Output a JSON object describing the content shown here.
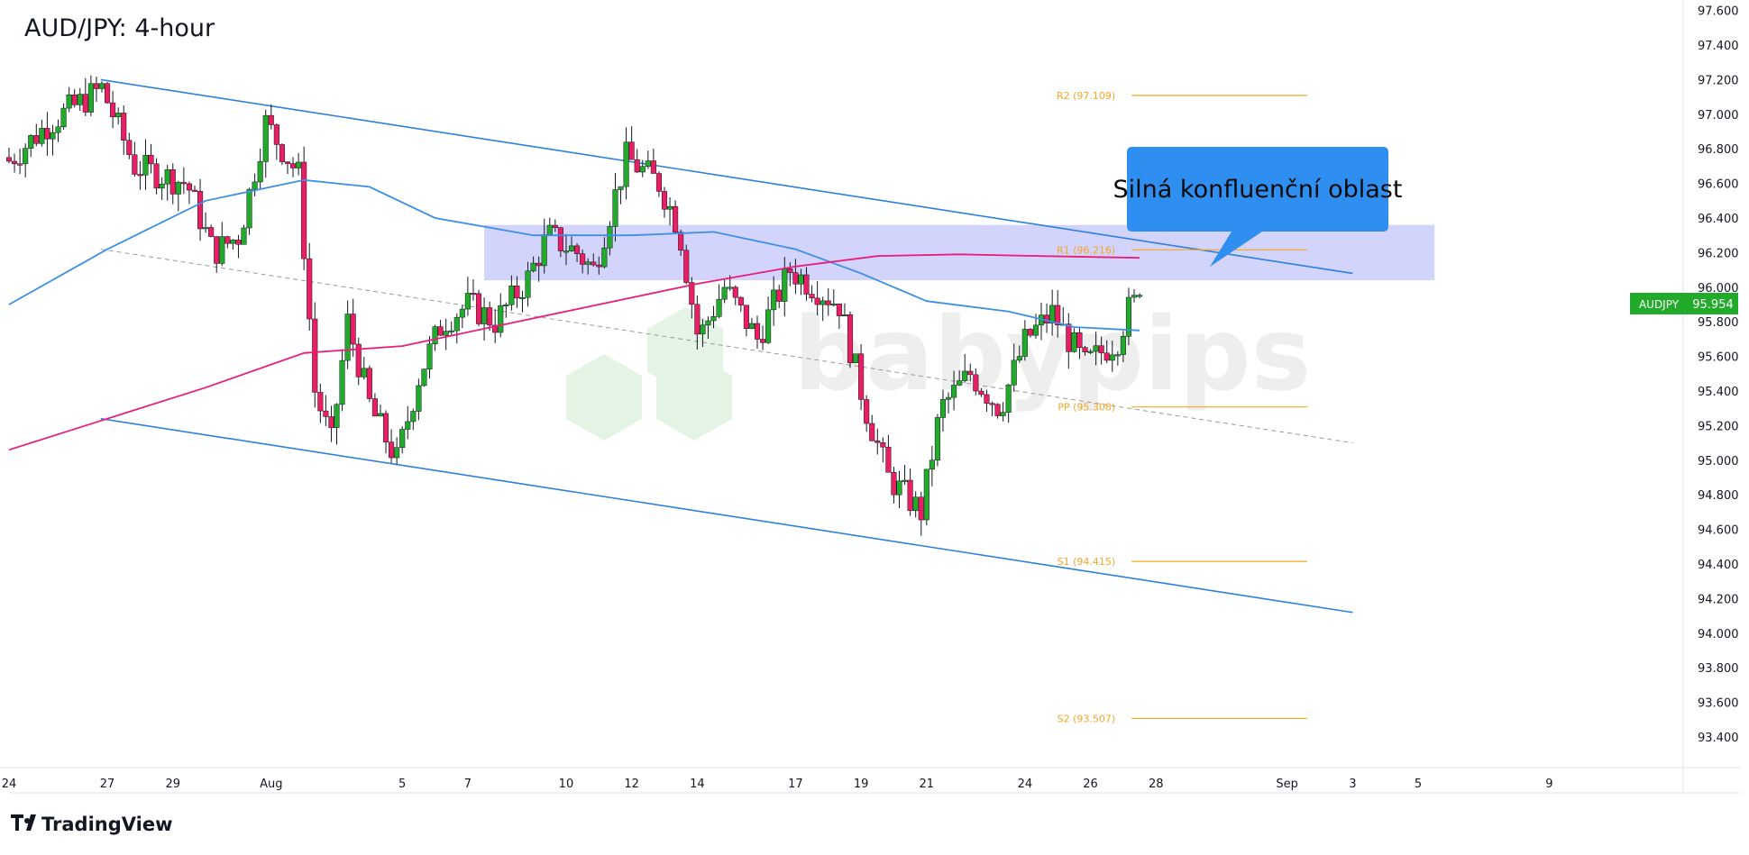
{
  "header": {
    "title": "AUD/JPY: 4-hour"
  },
  "footer": {
    "brand": "TradingView"
  },
  "watermark": {
    "text": "babypips"
  },
  "colors": {
    "bull": "#22ab2a",
    "bear": "#e91e63",
    "channel": "#2d7fe0",
    "sma100": "#3d8fe6",
    "sma200": "#e91e7a",
    "pivot": "#f5a623",
    "zone": "#c3c6fb",
    "callout": "#2e8ff0",
    "price_tag": "#22ab2a"
  },
  "annotation": {
    "text": "Silná konfluenční oblast"
  },
  "price_tag": {
    "symbol": "AUDJPY",
    "value": "95.954"
  },
  "chart_data": {
    "type": "candlestick",
    "title": "AUD/JPY: 4-hour",
    "ylim": [
      93.3,
      97.7
    ],
    "y_ticks": [
      "97.600",
      "97.400",
      "97.200",
      "97.000",
      "96.800",
      "96.600",
      "96.400",
      "96.200",
      "96.000",
      "95.800",
      "95.600",
      "95.400",
      "95.200",
      "95.000",
      "94.800",
      "94.600",
      "94.400",
      "94.200",
      "94.000",
      "93.800",
      "93.600",
      "93.400"
    ],
    "x_ticks": [
      {
        "label": "24",
        "day": 0
      },
      {
        "label": "27",
        "day": 3
      },
      {
        "label": "29",
        "day": 5
      },
      {
        "label": "Aug",
        "day": 8
      },
      {
        "label": "5",
        "day": 12
      },
      {
        "label": "7",
        "day": 14
      },
      {
        "label": "10",
        "day": 17
      },
      {
        "label": "12",
        "day": 19
      },
      {
        "label": "14",
        "day": 21
      },
      {
        "label": "17",
        "day": 24
      },
      {
        "label": "19",
        "day": 26
      },
      {
        "label": "21",
        "day": 28
      },
      {
        "label": "24",
        "day": 31
      },
      {
        "label": "26",
        "day": 33
      },
      {
        "label": "28",
        "day": 35
      },
      {
        "label": "Sep",
        "day": 39
      },
      {
        "label": "3",
        "day": 41
      },
      {
        "label": "5",
        "day": 43
      },
      {
        "label": "9",
        "day": 47
      }
    ],
    "candle_anchors": [
      {
        "day": 0.0,
        "price": 96.7
      },
      {
        "day": 1.4,
        "price": 96.95
      },
      {
        "day": 3.0,
        "price": 97.15
      },
      {
        "day": 4.0,
        "price": 96.7
      },
      {
        "day": 5.6,
        "price": 96.6
      },
      {
        "day": 6.4,
        "price": 96.2
      },
      {
        "day": 7.2,
        "price": 96.3
      },
      {
        "day": 8.0,
        "price": 96.95
      },
      {
        "day": 9.0,
        "price": 96.65
      },
      {
        "day": 9.5,
        "price": 95.4
      },
      {
        "day": 10.0,
        "price": 95.1
      },
      {
        "day": 10.5,
        "price": 95.8
      },
      {
        "day": 11.2,
        "price": 95.3
      },
      {
        "day": 12.0,
        "price": 95.0
      },
      {
        "day": 12.7,
        "price": 95.5
      },
      {
        "day": 13.4,
        "price": 95.8
      },
      {
        "day": 14.2,
        "price": 95.9
      },
      {
        "day": 15.0,
        "price": 95.8
      },
      {
        "day": 16.0,
        "price": 96.05
      },
      {
        "day": 16.6,
        "price": 96.3
      },
      {
        "day": 17.5,
        "price": 96.2
      },
      {
        "day": 18.0,
        "price": 96.1
      },
      {
        "day": 19.0,
        "price": 96.75
      },
      {
        "day": 20.0,
        "price": 96.6
      },
      {
        "day": 20.6,
        "price": 96.35
      },
      {
        "day": 21.2,
        "price": 95.7
      },
      {
        "day": 22.0,
        "price": 96.0
      },
      {
        "day": 23.0,
        "price": 95.7
      },
      {
        "day": 24.0,
        "price": 96.1
      },
      {
        "day": 25.5,
        "price": 95.9
      },
      {
        "day": 26.3,
        "price": 95.3
      },
      {
        "day": 27.0,
        "price": 94.9
      },
      {
        "day": 28.0,
        "price": 94.7
      },
      {
        "day": 28.6,
        "price": 95.3
      },
      {
        "day": 29.5,
        "price": 95.5
      },
      {
        "day": 30.4,
        "price": 95.3
      },
      {
        "day": 31.2,
        "price": 95.7
      },
      {
        "day": 32.0,
        "price": 95.85
      },
      {
        "day": 33.0,
        "price": 95.55
      },
      {
        "day": 34.0,
        "price": 95.7
      },
      {
        "day": 34.5,
        "price": 95.954
      }
    ],
    "channel_upper": [
      {
        "day": 2.8,
        "price": 97.2
      },
      {
        "day": 41.0,
        "price": 96.08
      }
    ],
    "channel_lower": [
      {
        "day": 2.8,
        "price": 95.24
      },
      {
        "day": 41.0,
        "price": 94.12
      }
    ],
    "channel_mid_dashed": [
      {
        "day": 2.8,
        "price": 96.22
      },
      {
        "day": 41.0,
        "price": 95.1
      }
    ],
    "sma100": [
      {
        "day": 0.0,
        "price": 95.9
      },
      {
        "day": 3.0,
        "price": 96.22
      },
      {
        "day": 6.0,
        "price": 96.5
      },
      {
        "day": 9.0,
        "price": 96.62
      },
      {
        "day": 11.0,
        "price": 96.58
      },
      {
        "day": 13.0,
        "price": 96.4
      },
      {
        "day": 16.0,
        "price": 96.3
      },
      {
        "day": 19.0,
        "price": 96.3
      },
      {
        "day": 21.5,
        "price": 96.32
      },
      {
        "day": 24.0,
        "price": 96.22
      },
      {
        "day": 26.0,
        "price": 96.08
      },
      {
        "day": 28.0,
        "price": 95.92
      },
      {
        "day": 30.5,
        "price": 95.86
      },
      {
        "day": 32.5,
        "price": 95.77
      },
      {
        "day": 34.5,
        "price": 95.75
      }
    ],
    "sma200": [
      {
        "day": 0.0,
        "price": 95.06
      },
      {
        "day": 3.0,
        "price": 95.24
      },
      {
        "day": 6.0,
        "price": 95.42
      },
      {
        "day": 9.0,
        "price": 95.62
      },
      {
        "day": 12.0,
        "price": 95.66
      },
      {
        "day": 15.0,
        "price": 95.78
      },
      {
        "day": 18.0,
        "price": 95.9
      },
      {
        "day": 21.0,
        "price": 96.02
      },
      {
        "day": 24.0,
        "price": 96.12
      },
      {
        "day": 26.5,
        "price": 96.18
      },
      {
        "day": 29.0,
        "price": 96.19
      },
      {
        "day": 31.5,
        "price": 96.18
      },
      {
        "day": 34.5,
        "price": 96.17
      }
    ],
    "confluence_zone": {
      "day_start": 14.5,
      "day_end": 43.5,
      "price_low": 96.04,
      "price_high": 96.36
    },
    "pivot_levels": [
      {
        "label": "R2 (97.109)",
        "price": 97.109
      },
      {
        "label": "R1 (96.216)",
        "price": 96.216
      },
      {
        "label": "PP (95.308)",
        "price": 95.308
      },
      {
        "label": "S1 (94.415)",
        "price": 94.415
      },
      {
        "label": "S2 (93.507)",
        "price": 93.507
      }
    ],
    "pivot_day_range": [
      32.0,
      40.0
    ]
  }
}
